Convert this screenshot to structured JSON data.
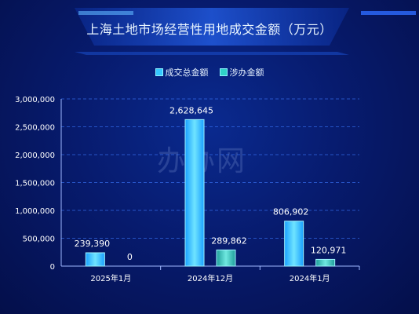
{
  "title": "上海土地市场经营性用地成交金额（万元）",
  "watermark": "办办网",
  "colors": {
    "series1": "#35c8ff",
    "series2": "#2fd3c8",
    "grid": "#3c79ff",
    "text": "#ffffff"
  },
  "chart_data": {
    "type": "bar",
    "categories": [
      "2025年1月",
      "2024年12月",
      "2024年1月"
    ],
    "series": [
      {
        "name": "成交总金额",
        "values": [
          239390,
          2628645,
          806902
        ],
        "labels": [
          "239,390",
          "2,628,645",
          "806,902"
        ]
      },
      {
        "name": "涉办金额",
        "values": [
          0,
          289862,
          120971
        ],
        "labels": [
          "0",
          "289,862",
          "120,971"
        ]
      }
    ],
    "yticks": [
      "0",
      "500,000",
      "1,000,000",
      "1,500,000",
      "2,000,000",
      "2,500,000",
      "3,000,000"
    ],
    "ylim": [
      0,
      3000000
    ],
    "grid": true,
    "legend": "top-center"
  }
}
